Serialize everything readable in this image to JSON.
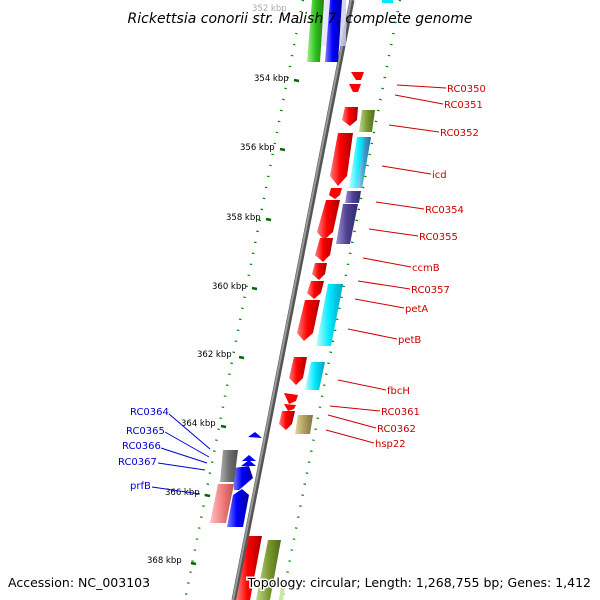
{
  "title": "Rickettsia conorii str. Malish 7, complete genome",
  "footer": {
    "accession": "Accession: NC_003103",
    "stats": "Topology: circular; Length: 1,268,755 bp; Genes: 1,412"
  },
  "axis_labels": [
    "352 kbp",
    "354 kbp",
    "356 kbp",
    "358 kbp",
    "360 kbp",
    "362 kbp",
    "364 kbp",
    "366 kbp",
    "368 kbp"
  ],
  "gene_labels_right": [
    "RC0350",
    "RC0351",
    "RC0352",
    "icd",
    "RC0354",
    "RC0355",
    "ccmB",
    "RC0357",
    "petA",
    "petB",
    "fbcH",
    "RC0361",
    "RC0362",
    "hsp22"
  ],
  "gene_labels_left": [
    "RC0364",
    "RC0365",
    "RC0366",
    "RC0367",
    "prfB"
  ],
  "colors": {
    "forward_genes": "#ff0000",
    "reverse_genes": "#0000ff",
    "backbone": "#888888",
    "gc_ticks": "#008800"
  }
}
